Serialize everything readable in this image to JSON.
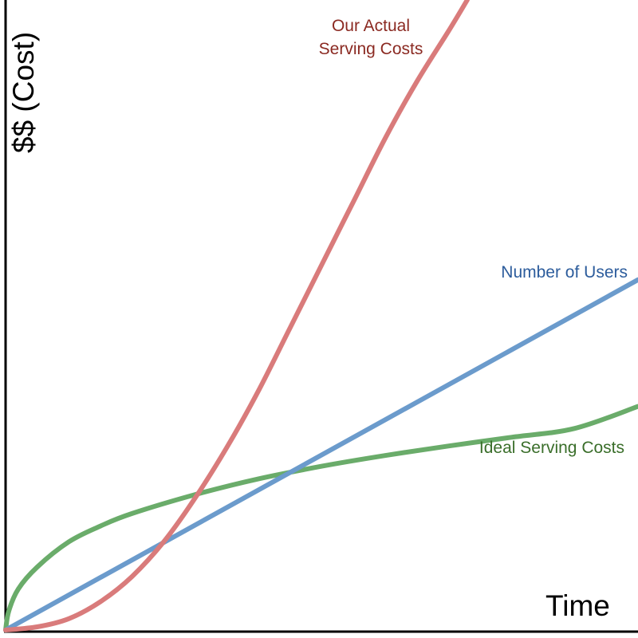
{
  "chart_data": {
    "type": "line",
    "title": "",
    "xlabel": "Time",
    "ylabel": "$$ (Cost)",
    "xlim": [
      0,
      1
    ],
    "ylim": [
      0,
      1
    ],
    "grid": false,
    "legend": "none",
    "series": [
      {
        "name": "Our Actual Serving Costs",
        "color": "#d97b7b",
        "label_color": "#8b2a22",
        "x": [
          0,
          0.05,
          0.1,
          0.15,
          0.2,
          0.25,
          0.3,
          0.35,
          0.4,
          0.45,
          0.5,
          0.55,
          0.6,
          0.65,
          0.7,
          0.73
        ],
        "y": [
          0,
          0.005,
          0.018,
          0.045,
          0.085,
          0.14,
          0.21,
          0.29,
          0.38,
          0.48,
          0.58,
          0.68,
          0.78,
          0.87,
          0.95,
          1.0
        ]
      },
      {
        "name": "Number of Users",
        "color": "#6b9bcc",
        "label_color": "#2c5c9c",
        "x": [
          0,
          1
        ],
        "y": [
          0,
          0.556
        ]
      },
      {
        "name": "Ideal Serving Costs",
        "color": "#6aac6a",
        "label_color": "#3a6e2a",
        "x": [
          0,
          0.005,
          0.02,
          0.05,
          0.1,
          0.15,
          0.2,
          0.3,
          0.4,
          0.5,
          0.6,
          0.7,
          0.8,
          0.9,
          1.0
        ],
        "y": [
          0,
          0.03,
          0.065,
          0.1,
          0.14,
          0.165,
          0.185,
          0.215,
          0.24,
          0.26,
          0.277,
          0.292,
          0.306,
          0.32,
          0.355
        ]
      }
    ]
  }
}
